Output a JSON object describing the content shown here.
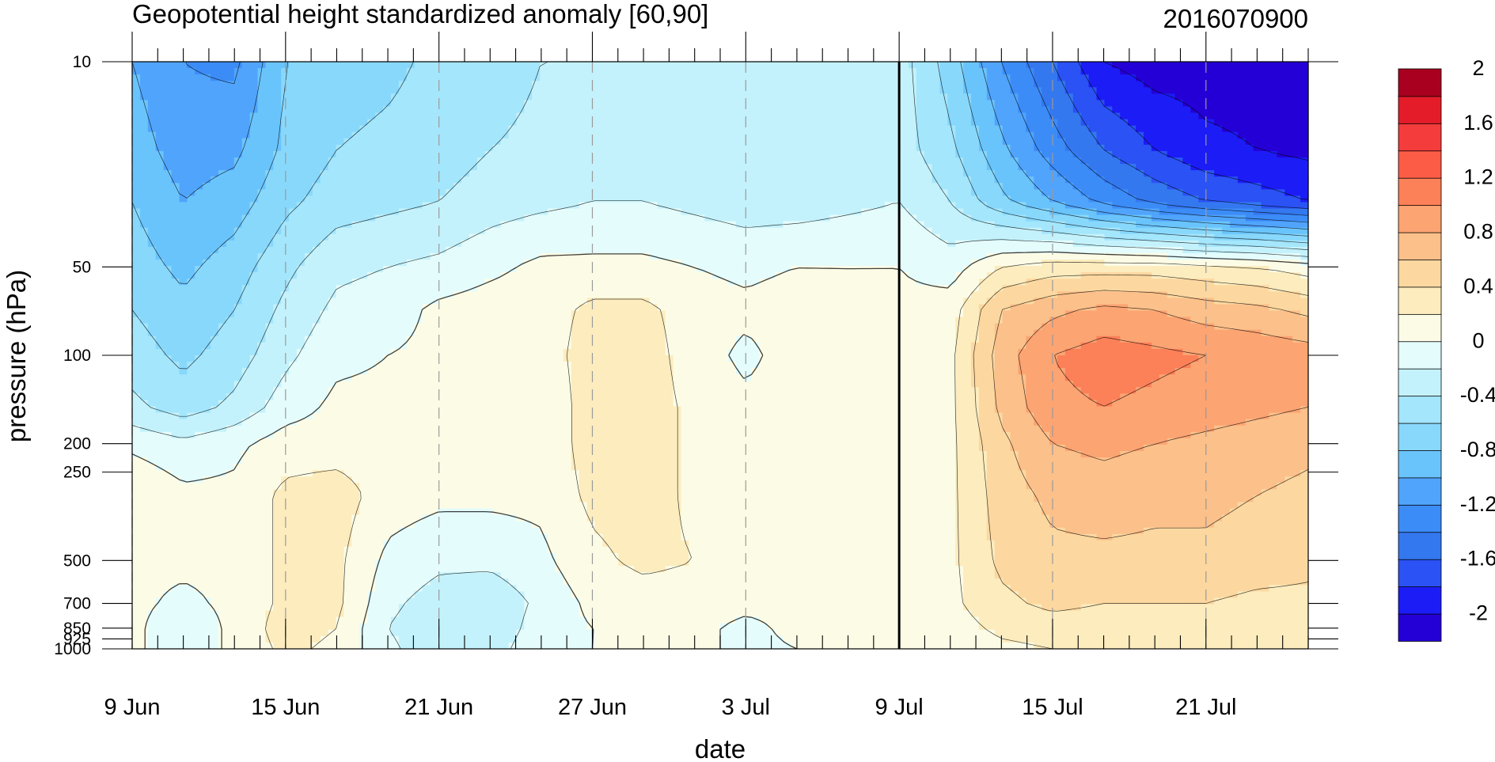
{
  "chart_data": {
    "type": "heatmap",
    "subtype": "filled-contour time-pressure cross-section",
    "title": "Geopotential height standardized anomaly [60,90]",
    "run_label": "2016070900",
    "xlabel": "date",
    "ylabel": "pressure (hPa)",
    "x_axis": {
      "kind": "date",
      "range": [
        "2016-06-09",
        "2016-07-25"
      ],
      "tick_labels": [
        "9 Jun",
        "15 Jun",
        "21 Jun",
        "27 Jun",
        "3 Jul",
        "9 Jul",
        "15 Jul",
        "21 Jul"
      ],
      "tick_dates": [
        "2016-06-09",
        "2016-06-15",
        "2016-06-21",
        "2016-06-27",
        "2016-07-03",
        "2016-07-09",
        "2016-07-15",
        "2016-07-21"
      ],
      "minor_tick_step_days": 1,
      "analysis_forecast_divider": "2016-07-09"
    },
    "y_axis": {
      "kind": "pressure",
      "scale": "log",
      "reversed": true,
      "range": [
        1000,
        10
      ],
      "tick_labels": [
        "10",
        "50",
        "100",
        "200",
        "250",
        "500",
        "700",
        "850",
        "925",
        "1000"
      ],
      "tick_values": [
        10,
        50,
        100,
        200,
        250,
        500,
        700,
        850,
        925,
        1000
      ]
    },
    "grid": "dashed vertical lines at labeled dates",
    "colorbar": {
      "placement": "right",
      "levels": [
        -2,
        -1.8,
        -1.6,
        -1.4,
        -1.2,
        -1,
        -0.8,
        -0.6,
        -0.4,
        -0.2,
        0,
        0.2,
        0.4,
        0.6,
        0.8,
        1,
        1.2,
        1.4,
        1.6,
        1.8,
        2
      ],
      "labels": [
        "2",
        "1.6",
        "1.2",
        "0.8",
        "0.4",
        "0",
        "-0.4",
        "-0.8",
        "-1.2",
        "-1.6",
        "-2"
      ],
      "label_values": [
        2,
        1.6,
        1.2,
        0.8,
        0.4,
        0,
        -0.4,
        -0.8,
        -1.2,
        -1.6,
        -2
      ],
      "colors_bottom_to_top": [
        "#2400d6",
        "#1c1cf6",
        "#2a52f4",
        "#3478f0",
        "#3c8cf8",
        "#50a4fc",
        "#6ac4fc",
        "#88d8fc",
        "#a4e6fc",
        "#c4f2fc",
        "#e4fcfc",
        "#fcfce6",
        "#fcecbe",
        "#fcd8a0",
        "#fcc08a",
        "#fca472",
        "#fc8058",
        "#fc5c46",
        "#f43c3c",
        "#e41c2a",
        "#a8001e"
      ]
    },
    "grid_values": {
      "levels_hPa": [
        10,
        20,
        30,
        50,
        70,
        100,
        150,
        200,
        300,
        500,
        700,
        850,
        1000
      ],
      "dates": [
        "2016-06-09",
        "2016-06-11",
        "2016-06-13",
        "2016-06-15",
        "2016-06-17",
        "2016-06-19",
        "2016-06-21",
        "2016-06-23",
        "2016-06-25",
        "2016-06-27",
        "2016-06-29",
        "2016-07-01",
        "2016-07-03",
        "2016-07-05",
        "2016-07-07",
        "2016-07-09",
        "2016-07-11",
        "2016-07-13",
        "2016-07-15",
        "2016-07-17",
        "2016-07-19",
        "2016-07-21",
        "2016-07-23",
        "2016-07-25"
      ],
      "values_by_level": [
        [
          -1.0,
          -1.2,
          -1.25,
          -0.8,
          -0.7,
          -0.65,
          -0.55,
          -0.5,
          -0.4,
          -0.4,
          -0.4,
          -0.4,
          -0.4,
          -0.4,
          -0.4,
          -0.3,
          -0.7,
          -1.2,
          -1.6,
          -2.0,
          -2.1,
          -2.1,
          -2.1,
          -2.1
        ],
        [
          -0.9,
          -1.1,
          -1.05,
          -0.75,
          -0.6,
          -0.55,
          -0.5,
          -0.4,
          -0.35,
          -0.3,
          -0.3,
          -0.35,
          -0.4,
          -0.35,
          -0.35,
          -0.3,
          -0.55,
          -0.95,
          -1.3,
          -1.6,
          -1.8,
          -1.95,
          -2.0,
          -2.05
        ],
        [
          -0.8,
          -1.0,
          -0.9,
          -0.65,
          -0.5,
          -0.45,
          -0.4,
          -0.3,
          -0.25,
          -0.2,
          -0.2,
          -0.25,
          -0.3,
          -0.3,
          -0.25,
          -0.2,
          -0.4,
          -0.75,
          -1.0,
          -1.25,
          -1.45,
          -1.6,
          -1.7,
          -1.8
        ],
        [
          -0.7,
          -0.85,
          -0.7,
          -0.45,
          -0.25,
          -0.2,
          -0.15,
          -0.05,
          0.05,
          0.05,
          0.05,
          0.0,
          -0.05,
          0.0,
          0.0,
          0.0,
          -0.1,
          0.2,
          0.3,
          0.3,
          0.3,
          0.25,
          0.2,
          0.1
        ],
        [
          -0.6,
          -0.75,
          -0.6,
          -0.35,
          -0.15,
          -0.1,
          0.05,
          0.1,
          0.1,
          0.25,
          0.25,
          0.1,
          0.05,
          0.1,
          0.05,
          0.05,
          0.1,
          0.6,
          0.75,
          0.85,
          0.8,
          0.7,
          0.65,
          0.55
        ],
        [
          -0.5,
          -0.65,
          -0.5,
          -0.25,
          -0.05,
          0.0,
          0.05,
          0.15,
          0.1,
          0.3,
          0.3,
          0.1,
          -0.05,
          0.1,
          0.05,
          0.05,
          0.15,
          0.7,
          1.0,
          1.1,
          1.05,
          1.0,
          0.95,
          0.9
        ],
        [
          -0.35,
          -0.5,
          -0.35,
          -0.1,
          0.05,
          0.05,
          0.05,
          0.05,
          0.05,
          0.3,
          0.3,
          0.15,
          0.05,
          0.1,
          0.05,
          0.05,
          0.15,
          0.65,
          0.95,
          1.0,
          0.95,
          0.9,
          0.85,
          0.8
        ],
        [
          -0.05,
          -0.15,
          -0.05,
          0.1,
          0.1,
          0.1,
          0.1,
          0.05,
          0.05,
          0.3,
          0.3,
          0.15,
          0.05,
          0.2,
          0.05,
          0.05,
          0.15,
          0.55,
          0.8,
          0.85,
          0.8,
          0.75,
          0.7,
          0.65
        ],
        [
          0.2,
          0.05,
          0.05,
          0.25,
          0.3,
          0.1,
          0.05,
          0.05,
          0.05,
          0.25,
          0.3,
          0.15,
          0.05,
          0.15,
          0.05,
          0.05,
          0.15,
          0.5,
          0.65,
          0.7,
          0.65,
          0.65,
          0.6,
          0.55
        ],
        [
          0.05,
          0.05,
          0.05,
          0.25,
          0.25,
          -0.05,
          -0.15,
          -0.15,
          -0.05,
          0.15,
          0.25,
          0.2,
          0.05,
          0.05,
          0.05,
          0.05,
          0.15,
          0.45,
          0.55,
          0.55,
          0.55,
          0.55,
          0.5,
          0.45
        ],
        [
          0.05,
          -0.05,
          0.05,
          0.25,
          0.25,
          -0.15,
          -0.3,
          -0.35,
          -0.15,
          0.05,
          0.1,
          0.1,
          0.05,
          0.05,
          0.05,
          0.1,
          0.15,
          0.35,
          0.45,
          0.4,
          0.4,
          0.4,
          0.35,
          0.35
        ],
        [
          0.05,
          -0.15,
          0.05,
          0.3,
          0.2,
          -0.2,
          -0.35,
          -0.35,
          -0.1,
          0.0,
          0.05,
          0.05,
          -0.05,
          0.05,
          0.05,
          0.1,
          0.1,
          0.25,
          0.3,
          0.3,
          0.3,
          0.25,
          0.25,
          0.25
        ],
        [
          0.05,
          -0.15,
          0.05,
          0.25,
          0.15,
          -0.15,
          -0.35,
          -0.3,
          -0.05,
          0.0,
          0.05,
          0.05,
          -0.05,
          0.0,
          0.05,
          0.05,
          0.05,
          0.15,
          0.2,
          0.25,
          0.25,
          0.2,
          0.2,
          0.2
        ]
      ]
    }
  }
}
